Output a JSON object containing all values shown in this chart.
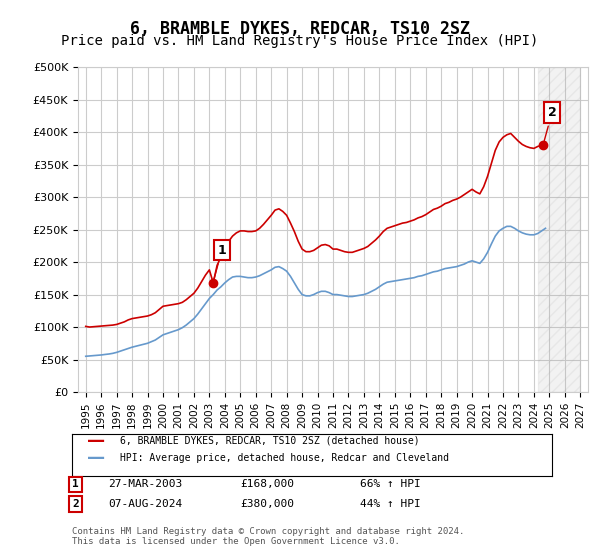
{
  "title": "6, BRAMBLE DYKES, REDCAR, TS10 2SZ",
  "subtitle": "Price paid vs. HM Land Registry's House Price Index (HPI)",
  "title_fontsize": 12,
  "subtitle_fontsize": 10,
  "ylabel": "",
  "xlabel": "",
  "ylim": [
    0,
    500000
  ],
  "yticks": [
    0,
    50000,
    100000,
    150000,
    200000,
    250000,
    300000,
    350000,
    400000,
    450000,
    500000
  ],
  "ytick_labels": [
    "£0",
    "£50K",
    "£100K",
    "£150K",
    "£200K",
    "£250K",
    "£300K",
    "£350K",
    "£400K",
    "£450K",
    "£500K"
  ],
  "background_color": "#ffffff",
  "grid_color": "#cccccc",
  "red_line_color": "#cc0000",
  "blue_line_color": "#6699cc",
  "marker1_color": "#cc0000",
  "marker2_color": "#cc0000",
  "annotation_box_color": "#cc0000",
  "legend_label_red": "6, BRAMBLE DYKES, REDCAR, TS10 2SZ (detached house)",
  "legend_label_blue": "HPI: Average price, detached house, Redcar and Cleveland",
  "marker1_x": 2003.23,
  "marker1_y": 168000,
  "marker2_x": 2024.59,
  "marker2_y": 380000,
  "annotation1_label": "1",
  "annotation2_label": "2",
  "table_row1": "1    27-MAR-2003         £168,000        66% ↑ HPI",
  "table_row2": "2    07-AUG-2024         £380,000        44% ↑ HPI",
  "footer": "Contains HM Land Registry data © Crown copyright and database right 2024.\nThis data is licensed under the Open Government Licence v3.0.",
  "hpi_data_x": [
    1995.0,
    1995.25,
    1995.5,
    1995.75,
    1996.0,
    1996.25,
    1996.5,
    1996.75,
    1997.0,
    1997.25,
    1997.5,
    1997.75,
    1998.0,
    1998.25,
    1998.5,
    1998.75,
    1999.0,
    1999.25,
    1999.5,
    1999.75,
    2000.0,
    2000.25,
    2000.5,
    2000.75,
    2001.0,
    2001.25,
    2001.5,
    2001.75,
    2002.0,
    2002.25,
    2002.5,
    2002.75,
    2003.0,
    2003.25,
    2003.5,
    2003.75,
    2004.0,
    2004.25,
    2004.5,
    2004.75,
    2005.0,
    2005.25,
    2005.5,
    2005.75,
    2006.0,
    2006.25,
    2006.5,
    2006.75,
    2007.0,
    2007.25,
    2007.5,
    2007.75,
    2008.0,
    2008.25,
    2008.5,
    2008.75,
    2009.0,
    2009.25,
    2009.5,
    2009.75,
    2010.0,
    2010.25,
    2010.5,
    2010.75,
    2011.0,
    2011.25,
    2011.5,
    2011.75,
    2012.0,
    2012.25,
    2012.5,
    2012.75,
    2013.0,
    2013.25,
    2013.5,
    2013.75,
    2014.0,
    2014.25,
    2014.5,
    2014.75,
    2015.0,
    2015.25,
    2015.5,
    2015.75,
    2016.0,
    2016.25,
    2016.5,
    2016.75,
    2017.0,
    2017.25,
    2017.5,
    2017.75,
    2018.0,
    2018.25,
    2018.5,
    2018.75,
    2019.0,
    2019.25,
    2019.5,
    2019.75,
    2020.0,
    2020.25,
    2020.5,
    2020.75,
    2021.0,
    2021.25,
    2021.5,
    2021.75,
    2022.0,
    2022.25,
    2022.5,
    2022.75,
    2023.0,
    2023.25,
    2023.5,
    2023.75,
    2024.0,
    2024.25,
    2024.5,
    2024.75
  ],
  "hpi_data_y": [
    55000,
    55500,
    56000,
    56500,
    57000,
    57800,
    58500,
    59500,
    61000,
    63000,
    65000,
    67000,
    69000,
    70500,
    72000,
    73500,
    75000,
    77500,
    80000,
    84000,
    88000,
    90000,
    92000,
    94000,
    96000,
    99000,
    103000,
    108000,
    113000,
    120000,
    128000,
    136000,
    144000,
    150000,
    157000,
    162000,
    168000,
    173000,
    177000,
    178000,
    178000,
    177000,
    176000,
    176000,
    177000,
    179000,
    182000,
    185000,
    188000,
    192000,
    193000,
    190000,
    186000,
    178000,
    168000,
    158000,
    150000,
    148000,
    148000,
    150000,
    153000,
    155000,
    155000,
    153000,
    150000,
    150000,
    149000,
    148000,
    147000,
    147000,
    148000,
    149000,
    150000,
    152000,
    155000,
    158000,
    162000,
    166000,
    169000,
    170000,
    171000,
    172000,
    173000,
    174000,
    175000,
    176000,
    178000,
    179000,
    181000,
    183000,
    185000,
    186000,
    188000,
    190000,
    191000,
    192000,
    193000,
    195000,
    197000,
    200000,
    202000,
    200000,
    198000,
    205000,
    215000,
    228000,
    240000,
    248000,
    252000,
    255000,
    255000,
    252000,
    248000,
    245000,
    243000,
    242000,
    242000,
    244000,
    248000,
    252000
  ],
  "price_data_x": [
    1995.0,
    1995.25,
    1995.5,
    1995.75,
    1996.0,
    1996.25,
    1996.5,
    1996.75,
    1997.0,
    1997.25,
    1997.5,
    1997.75,
    1998.0,
    1998.25,
    1998.5,
    1998.75,
    1999.0,
    1999.25,
    1999.5,
    1999.75,
    2000.0,
    2000.25,
    2000.5,
    2000.75,
    2001.0,
    2001.25,
    2001.5,
    2001.75,
    2002.0,
    2002.25,
    2002.5,
    2002.75,
    2003.0,
    2003.25,
    2003.5,
    2003.75,
    2004.0,
    2004.25,
    2004.5,
    2004.75,
    2005.0,
    2005.25,
    2005.5,
    2005.75,
    2006.0,
    2006.25,
    2006.5,
    2006.75,
    2007.0,
    2007.25,
    2007.5,
    2007.75,
    2008.0,
    2008.25,
    2008.5,
    2008.75,
    2009.0,
    2009.25,
    2009.5,
    2009.75,
    2010.0,
    2010.25,
    2010.5,
    2010.75,
    2011.0,
    2011.25,
    2011.5,
    2011.75,
    2012.0,
    2012.25,
    2012.5,
    2012.75,
    2013.0,
    2013.25,
    2013.5,
    2013.75,
    2014.0,
    2014.25,
    2014.5,
    2014.75,
    2015.0,
    2015.25,
    2015.5,
    2015.75,
    2016.0,
    2016.25,
    2016.5,
    2016.75,
    2017.0,
    2017.25,
    2017.5,
    2017.75,
    2018.0,
    2018.25,
    2018.5,
    2018.75,
    2019.0,
    2019.25,
    2019.5,
    2019.75,
    2020.0,
    2020.25,
    2020.5,
    2020.75,
    2021.0,
    2021.25,
    2021.5,
    2021.75,
    2022.0,
    2022.25,
    2022.5,
    2022.75,
    2023.0,
    2023.25,
    2023.5,
    2023.75,
    2024.0,
    2024.25,
    2024.5,
    2024.75
  ],
  "price_data_y": [
    101000,
    100000,
    100500,
    101000,
    101500,
    102000,
    102500,
    103000,
    104000,
    106000,
    108000,
    111000,
    113000,
    114000,
    115000,
    116000,
    117000,
    119000,
    122000,
    127000,
    132000,
    133000,
    134000,
    135000,
    136000,
    138000,
    142000,
    147000,
    152000,
    160000,
    170000,
    180000,
    188000,
    168000,
    195000,
    208000,
    220000,
    232000,
    240000,
    245000,
    248000,
    248000,
    247000,
    247000,
    248000,
    252000,
    258000,
    265000,
    272000,
    280000,
    282000,
    278000,
    272000,
    260000,
    247000,
    232000,
    220000,
    216000,
    216000,
    218000,
    222000,
    226000,
    227000,
    225000,
    220000,
    220000,
    218000,
    216000,
    215000,
    215000,
    217000,
    219000,
    221000,
    224000,
    229000,
    234000,
    240000,
    247000,
    252000,
    254000,
    256000,
    258000,
    260000,
    261000,
    263000,
    265000,
    268000,
    270000,
    273000,
    277000,
    281000,
    283000,
    286000,
    290000,
    292000,
    295000,
    297000,
    300000,
    304000,
    308000,
    312000,
    308000,
    305000,
    316000,
    332000,
    352000,
    372000,
    385000,
    392000,
    396000,
    398000,
    392000,
    386000,
    381000,
    378000,
    376000,
    375000,
    378000,
    380000,
    385000
  ],
  "hpi_shaded_x_start": 2024.25,
  "hpi_shaded_x_end": 2027.0,
  "xlim_start": 1994.5,
  "xlim_end": 2027.5,
  "xtick_years": [
    1995,
    1996,
    1997,
    1998,
    1999,
    2000,
    2001,
    2002,
    2003,
    2004,
    2005,
    2006,
    2007,
    2008,
    2009,
    2010,
    2011,
    2012,
    2013,
    2014,
    2015,
    2016,
    2017,
    2018,
    2019,
    2020,
    2021,
    2022,
    2023,
    2024,
    2025,
    2026,
    2027
  ]
}
